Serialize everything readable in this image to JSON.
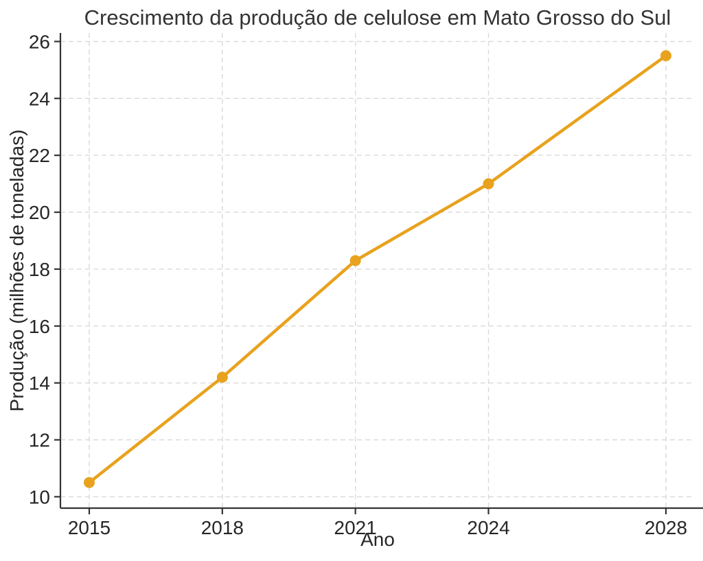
{
  "chart_data": {
    "type": "line",
    "title": "Crescimento da produção de celulose em Mato Grosso do Sul",
    "xlabel": "Ano",
    "ylabel": "Produção (milhões de toneladas)",
    "x": [
      2015,
      2018,
      2021,
      2024,
      2028
    ],
    "values": [
      10.5,
      14.2,
      18.3,
      21.0,
      25.5
    ],
    "xticks": [
      2015,
      2018,
      2021,
      2024,
      2028
    ],
    "yticks": [
      10,
      12,
      14,
      16,
      18,
      20,
      22,
      24,
      26
    ],
    "xlim": [
      2014.35,
      2028.65
    ],
    "ylim": [
      9.6,
      26.3
    ],
    "grid": true,
    "grid_style": "dashed",
    "legend": "none",
    "marker": "circle",
    "colors": {
      "line": "#E8A21D",
      "grid": "#d9d9d9",
      "axis": "#333333",
      "text": "#262626",
      "background": "#ffffff"
    }
  }
}
